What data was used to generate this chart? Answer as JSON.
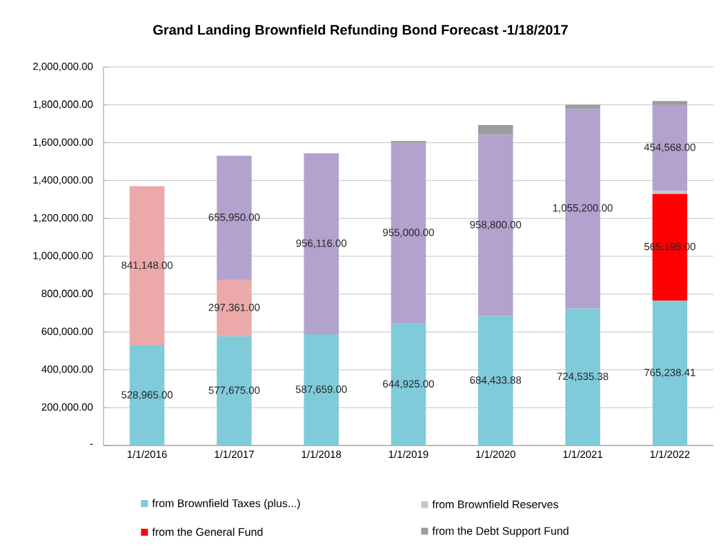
{
  "chart_data": {
    "type": "bar",
    "stacked": true,
    "title": "Grand Landing Brownfield Refunding Bond Forecast -1/18/2017",
    "categories": [
      "1/1/2016",
      "1/1/2017",
      "1/1/2018",
      "1/1/2019",
      "1/1/2020",
      "1/1/2021",
      "1/1/2022"
    ],
    "series": [
      {
        "name": "from Brownfield Taxes (plus...)",
        "color": "#7fcbd9",
        "values": [
          528965,
          577675,
          587659,
          644925,
          684433.88,
          724535.38,
          765238.41
        ],
        "value_labels": [
          "528,965.00",
          "577,675.00",
          "587,659.00",
          "644,925.00",
          "684,433.88",
          "724,535.38",
          "765,238.41"
        ]
      },
      {
        "color": "#eba9aa",
        "values": [
          841148,
          297361,
          null,
          null,
          null,
          null,
          null
        ],
        "value_labels": [
          "841,148.00",
          "297,361.00",
          null,
          null,
          null,
          null,
          null
        ]
      },
      {
        "name": "from the General Fund",
        "color": "#ff0000",
        "values": [
          null,
          null,
          null,
          null,
          null,
          null,
          565195
        ],
        "value_labels": [
          null,
          null,
          null,
          null,
          null,
          null,
          "565,195.00"
        ]
      },
      {
        "name": "from Brownfield Reserves",
        "color": "#c8c8c8",
        "values": [
          null,
          null,
          null,
          null,
          null,
          null,
          15000
        ]
      },
      {
        "color": "#b3a2cd",
        "values": [
          null,
          655950,
          956116,
          955000,
          958800,
          1055200,
          454568
        ],
        "value_labels": [
          null,
          "655,950.00",
          "956,116.00",
          "955,000.00",
          "958,800.00",
          "1,055,200.00",
          "454,568.00"
        ]
      },
      {
        "name": "from the Debt Support Fund",
        "color": "#9c9c9c",
        "values": [
          null,
          null,
          null,
          10000,
          50000,
          20000,
          20000
        ]
      }
    ],
    "ylim": [
      0,
      2000000
    ],
    "yticks": [
      {
        "value": 0,
        "label": "-"
      },
      {
        "value": 200000,
        "label": "200,000.00"
      },
      {
        "value": 400000,
        "label": "400,000.00"
      },
      {
        "value": 600000,
        "label": "600,000.00"
      },
      {
        "value": 800000,
        "label": "800,000.00"
      },
      {
        "value": 1000000,
        "label": "1,000,000.00"
      },
      {
        "value": 1200000,
        "label": "1,200,000.00"
      },
      {
        "value": 1400000,
        "label": "1,400,000.00"
      },
      {
        "value": 1600000,
        "label": "1,600,000.00"
      },
      {
        "value": 1800000,
        "label": "1,800,000.00"
      },
      {
        "value": 2000000,
        "label": "2,000,000.00"
      }
    ],
    "grid": "y",
    "legend": "bottom"
  }
}
